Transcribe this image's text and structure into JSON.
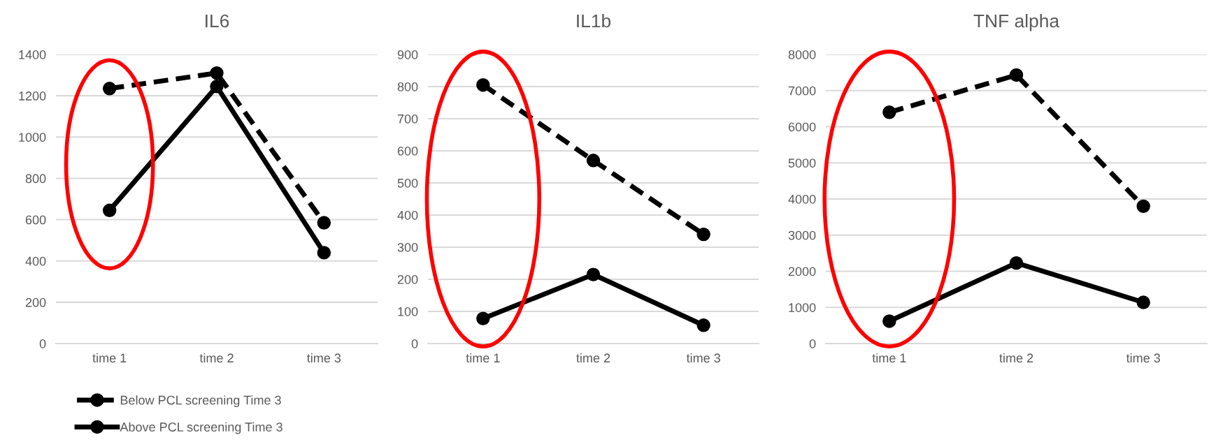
{
  "chart_data": [
    {
      "type": "line",
      "title": "IL6",
      "categories": [
        "time 1",
        "time 2",
        "time 3"
      ],
      "ylim": [
        0,
        1400
      ],
      "yticks": [
        0,
        200,
        400,
        600,
        800,
        1000,
        1200,
        1400
      ],
      "grid": "y",
      "marker": "circle",
      "legend": "bottom",
      "series": [
        {
          "name": "Below PCL screening Time 3",
          "color": "#000000",
          "line_style": "dashed",
          "values": [
            1235,
            1310,
            585
          ]
        },
        {
          "name": "Above PCL screening Time 3",
          "color": "#000000",
          "line_style": "solid",
          "values": [
            645,
            1245,
            440
          ]
        }
      ]
    },
    {
      "type": "line",
      "title": "IL1b",
      "categories": [
        "time 1",
        "time 2",
        "time 3"
      ],
      "ylim": [
        0,
        900
      ],
      "yticks": [
        0,
        100,
        200,
        300,
        400,
        500,
        600,
        700,
        800,
        900
      ],
      "grid": "y",
      "marker": "circle",
      "series": [
        {
          "color": "#000000",
          "line_style": "dashed",
          "values": [
            805,
            570,
            340
          ]
        },
        {
          "color": "#000000",
          "line_style": "solid",
          "values": [
            78,
            215,
            57
          ]
        }
      ]
    },
    {
      "type": "line",
      "title": "TNF alpha",
      "categories": [
        "time 1",
        "time 2",
        "time 3"
      ],
      "ylim": [
        0,
        8000
      ],
      "yticks": [
        0,
        1000,
        2000,
        3000,
        4000,
        5000,
        6000,
        7000,
        8000
      ],
      "grid": "y",
      "marker": "circle",
      "series": [
        {
          "color": "#000000",
          "line_style": "dashed",
          "values": [
            6400,
            7430,
            3800
          ]
        },
        {
          "color": "#000000",
          "line_style": "solid",
          "values": [
            620,
            2230,
            1140
          ]
        }
      ]
    }
  ]
}
